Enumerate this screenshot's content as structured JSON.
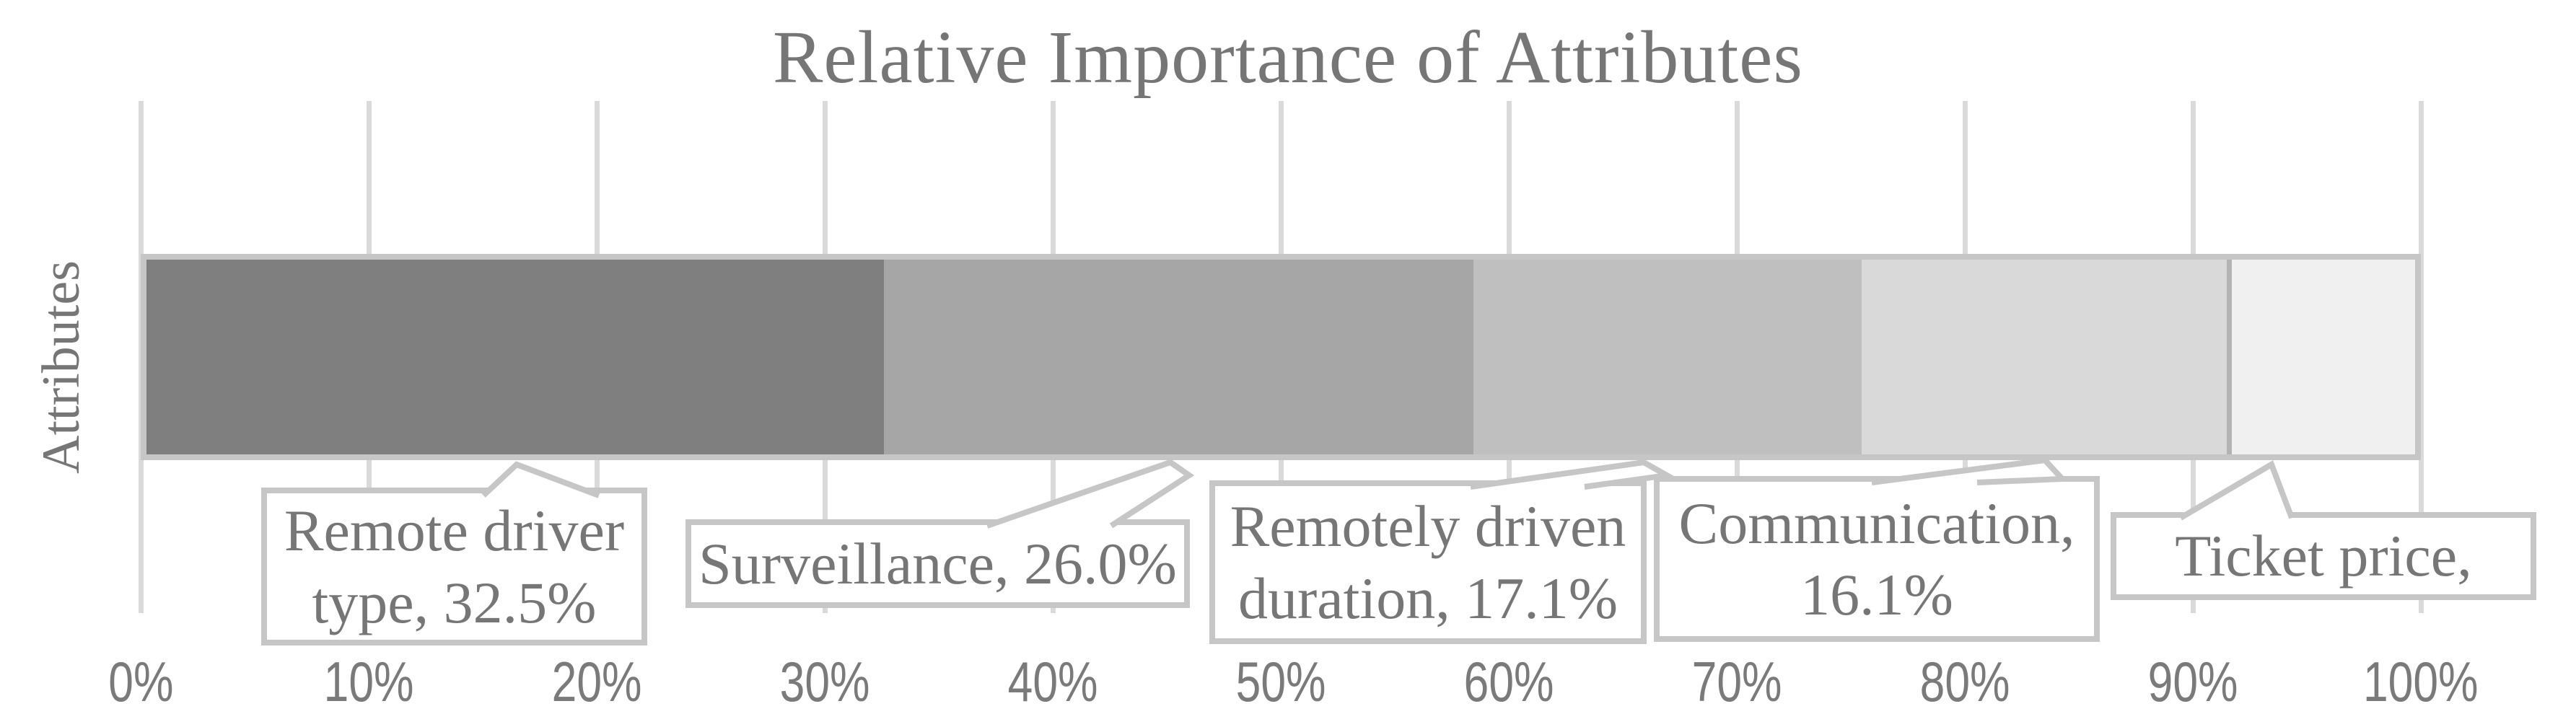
{
  "chart_data": {
    "type": "bar",
    "subtype": "stacked-horizontal-100percent",
    "title": "Relative Importance of Attributes",
    "xlabel": "",
    "ylabel": "Attributes",
    "categories": [
      "Attributes"
    ],
    "x_axis": {
      "range_pct": [
        0,
        100
      ],
      "tick_step_pct": 10,
      "tick_labels": [
        "0%",
        "10%",
        "20%",
        "30%",
        "40%",
        "50%",
        "60%",
        "70%",
        "80%",
        "90%",
        "100%"
      ],
      "grid": "on",
      "gridline_color": "#dadada"
    },
    "legend_position": "none",
    "series": [
      {
        "name": "Remote driver type",
        "value_pct": 32.5,
        "color": "#7f7f7f",
        "data_label": "Remote driver type, 32.5%",
        "callout_lines": [
          "Remote driver",
          "type, 32.5%"
        ]
      },
      {
        "name": "Surveillance",
        "value_pct": 26.0,
        "color": "#a6a6a6",
        "data_label": "Surveillance, 26.0%",
        "callout_lines": [
          "Surveillance, 26.0%"
        ]
      },
      {
        "name": "Remotely driven duration",
        "value_pct": 17.1,
        "color": "#bfbfbf",
        "data_label": "Remotely driven duration, 17.1%",
        "callout_lines": [
          "Remotely driven",
          "duration, 17.1%"
        ]
      },
      {
        "name": "Communication",
        "value_pct": 16.1,
        "color": "#d9d9d9",
        "data_label": "Communication, 16.1%",
        "callout_lines": [
          "Communication,",
          "16.1%"
        ]
      },
      {
        "name": "Ticket price",
        "value_pct": 8.3,
        "color": "#f0f0f0",
        "data_label": "Ticket price,",
        "callout_lines": [
          "Ticket price,"
        ]
      }
    ]
  },
  "colors": {
    "title_text": "#767676",
    "axis_text": "#7a7a7a",
    "callout_text": "#767676",
    "gridline": "#dadada",
    "bar_outline": "#c6c6c6",
    "callout_border": "#c6c6c6",
    "last_segment_divider": "#b3b3b3",
    "background": "#ffffff"
  }
}
